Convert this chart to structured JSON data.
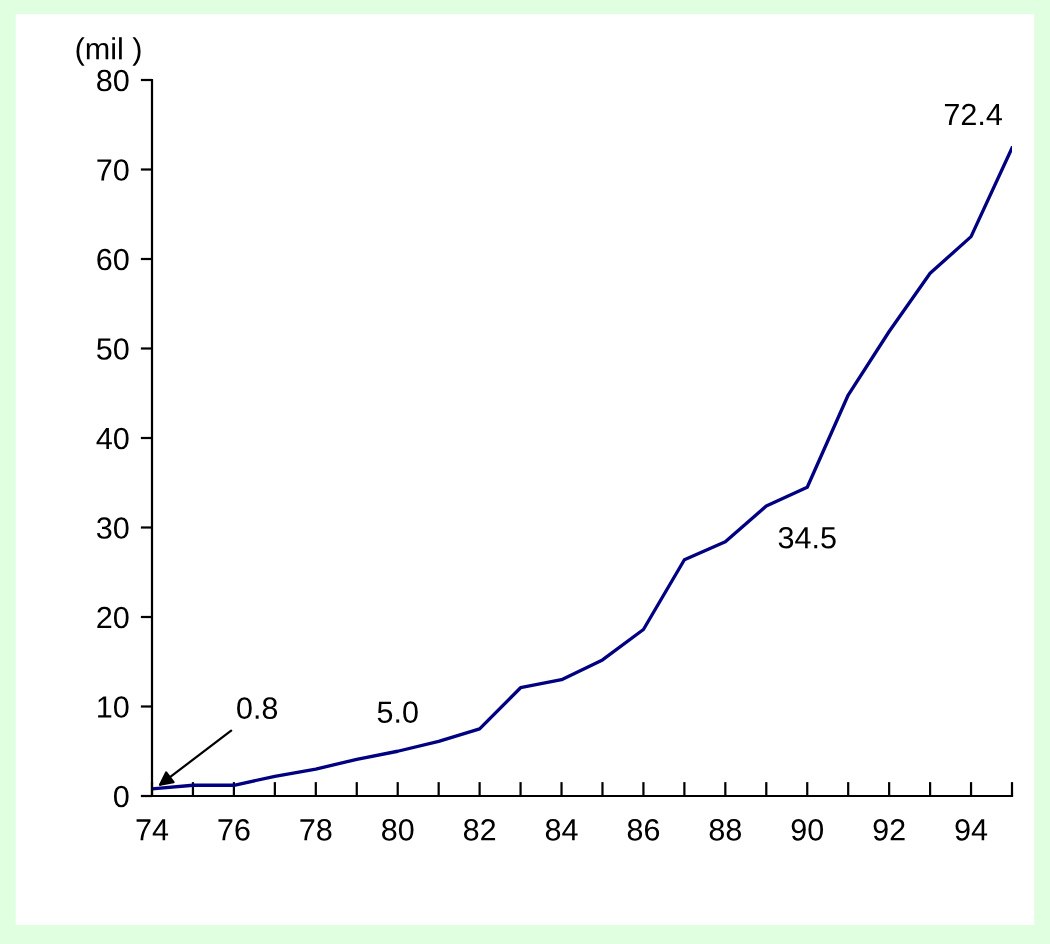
{
  "chart_data": {
    "type": "line",
    "ylabel": "(mil )",
    "x": [
      74,
      75,
      76,
      77,
      78,
      79,
      80,
      81,
      82,
      83,
      84,
      85,
      86,
      87,
      88,
      89,
      90,
      91,
      92,
      93,
      94,
      95
    ],
    "series": [
      {
        "color": "#000080",
        "values": [
          0.8,
          1.2,
          1.2,
          2.2,
          3.0,
          4.1,
          5.0,
          6.1,
          7.5,
          12.1,
          13.0,
          15.2,
          18.6,
          26.4,
          28.4,
          32.4,
          34.5,
          44.8,
          51.9,
          58.4,
          62.5,
          72.4
        ]
      }
    ],
    "xlim": [
      74,
      95
    ],
    "ylim": [
      0,
      80
    ],
    "xticks": [
      74,
      {
        "value": 75,
        "label": null
      },
      76,
      {
        "value": 77,
        "label": null
      },
      78,
      {
        "value": 79,
        "label": null
      },
      80,
      {
        "value": 81,
        "label": null
      },
      82,
      {
        "value": 83,
        "label": null
      },
      84,
      {
        "value": 85,
        "label": null
      },
      86,
      {
        "value": 87,
        "label": null
      },
      88,
      {
        "value": 89,
        "label": null
      },
      90,
      {
        "value": 91,
        "label": null
      },
      92,
      {
        "value": 93,
        "label": null
      },
      94,
      {
        "value": 95,
        "label": null
      }
    ],
    "yticks": [
      0,
      10,
      20,
      30,
      40,
      50,
      60,
      70,
      80
    ],
    "annotations": [
      {
        "text": "0.8",
        "x": 74,
        "y": 0.8
      },
      {
        "text": "5.0",
        "x": 80,
        "y": 5.0
      },
      {
        "text": "34.5",
        "x": 90,
        "y": 34.5
      },
      {
        "text": "72.4",
        "x": 95,
        "y": 72.4
      }
    ],
    "grid": false,
    "legend": false,
    "marker": "none",
    "line_style": "solid"
  }
}
